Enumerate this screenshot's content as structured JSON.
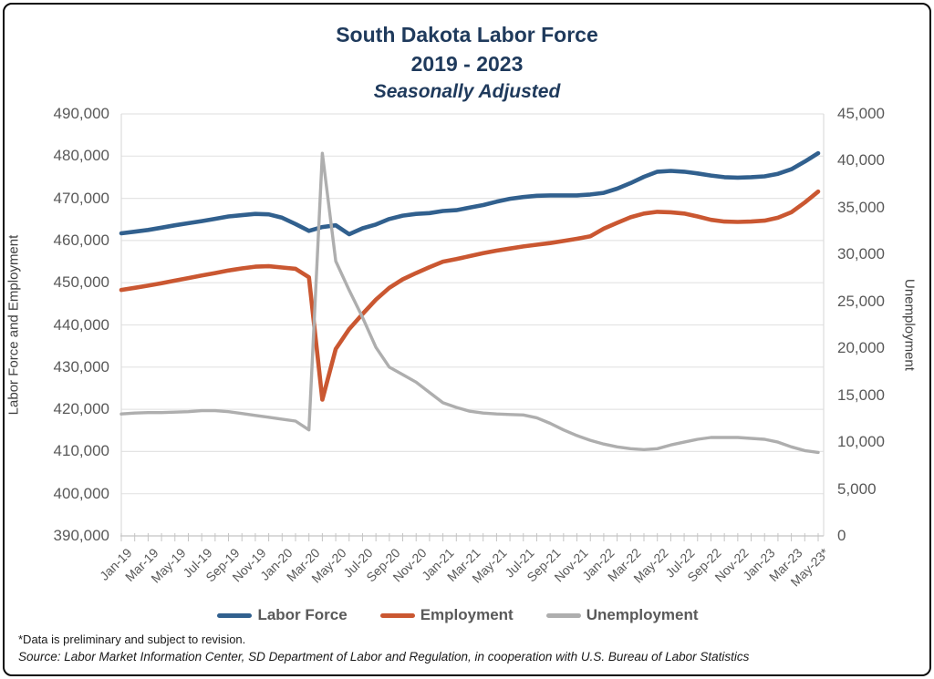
{
  "colors": {
    "title_text": "#1F3A5C",
    "tick_text": "#595959",
    "legend_text": "#595959",
    "gridline": "#E4E4E4",
    "axis_line": "#C4C4C4",
    "plot_border": "#DCDCDC",
    "frame_border": "#0A0A0A",
    "background": "#FFFFFF",
    "labor_force_line": "#31608E",
    "employment_line": "#CA5731",
    "unemployment_line": "#AEAEAE"
  },
  "footnotes": {
    "note": "*Data is preliminary and subject to revision.",
    "source": "Source: Labor Market Information Center, SD Department of Labor and Regulation, in cooperation with U.S. Bureau of Labor Statistics"
  },
  "chart_data": {
    "type": "line",
    "title_lines": [
      "South Dakota Labor Force",
      "2019 - 2023",
      "Seasonally Adjusted"
    ],
    "grid": "horizontal",
    "legend_position": "bottom",
    "x": [
      "Jan-19",
      "Feb-19",
      "Mar-19",
      "Apr-19",
      "May-19",
      "Jun-19",
      "Jul-19",
      "Aug-19",
      "Sep-19",
      "Oct-19",
      "Nov-19",
      "Dec-19",
      "Jan-20",
      "Feb-20",
      "Mar-20",
      "Apr-20",
      "May-20",
      "Jun-20",
      "Jul-20",
      "Aug-20",
      "Sep-20",
      "Oct-20",
      "Nov-20",
      "Dec-20",
      "Jan-21",
      "Feb-21",
      "Mar-21",
      "Apr-21",
      "May-21",
      "Jun-21",
      "Jul-21",
      "Aug-21",
      "Sep-21",
      "Oct-21",
      "Nov-21",
      "Dec-21",
      "Jan-22",
      "Feb-22",
      "Mar-22",
      "Apr-22",
      "May-22",
      "Jun-22",
      "Jul-22",
      "Aug-22",
      "Sep-22",
      "Oct-22",
      "Nov-22",
      "Dec-22",
      "Jan-23",
      "Feb-23",
      "Mar-23",
      "Apr-23",
      "May-23"
    ],
    "x_tick_labels": [
      "Jan-19",
      "Mar-19",
      "May-19",
      "Jul-19",
      "Sep-19",
      "Nov-19",
      "Jan-20",
      "Mar-20",
      "May-20",
      "Jul-20",
      "Sep-20",
      "Nov-20",
      "Jan-21",
      "Mar-21",
      "May-21",
      "Jul-21",
      "Sep-21",
      "Nov-21",
      "Jan-22",
      "Mar-22",
      "May-22",
      "Jul-22",
      "Sep-22",
      "Nov-22",
      "Jan-23",
      "Mar-23",
      "May-23*"
    ],
    "x_label_every": 2,
    "left_axis": {
      "label": "Labor Force and Employment",
      "min": 390000,
      "max": 490000,
      "step": 10000,
      "tick_labels": [
        "490,000",
        "480,000",
        "470,000",
        "460,000",
        "450,000",
        "440,000",
        "430,000",
        "420,000",
        "410,000",
        "400,000",
        "390,000"
      ]
    },
    "right_axis": {
      "label": "Unemployment",
      "min": 0,
      "max": 45000,
      "step": 5000,
      "tick_labels": [
        "45,000",
        "40,000",
        "35,000",
        "30,000",
        "25,000",
        "20,000",
        "15,000",
        "10,000",
        "5,000",
        "0"
      ]
    },
    "series": [
      {
        "name": "Labor Force",
        "axis": "left",
        "color_key": "labor_force_line",
        "values": [
          461700,
          462100,
          462500,
          463050,
          463600,
          464100,
          464600,
          465150,
          465700,
          466000,
          466300,
          466200,
          465400,
          463900,
          462300,
          463200,
          463600,
          461500,
          462900,
          463800,
          465100,
          465900,
          466300,
          466500,
          467000,
          467200,
          467800,
          468400,
          469200,
          469900,
          470300,
          470600,
          470700,
          470700,
          470700,
          470900,
          471300,
          472300,
          473600,
          475100,
          476300,
          476500,
          476300,
          475900,
          475400,
          475000,
          474900,
          475000,
          475200,
          475800,
          476900,
          478700,
          480700
        ]
      },
      {
        "name": "Employment",
        "axis": "left",
        "color_key": "employment_line",
        "values": [
          448300,
          448800,
          449300,
          449900,
          450500,
          451100,
          451700,
          452300,
          452900,
          453400,
          453800,
          453900,
          453600,
          453300,
          451300,
          422300,
          434300,
          439000,
          442600,
          446000,
          448800,
          450800,
          452300,
          453700,
          455000,
          455600,
          456300,
          457000,
          457600,
          458100,
          458600,
          459000,
          459400,
          459900,
          460400,
          461000,
          462800,
          464200,
          465500,
          466400,
          466800,
          466700,
          466400,
          465700,
          464900,
          464500,
          464400,
          464500,
          464700,
          465400,
          466700,
          469000,
          471600
        ]
      },
      {
        "name": "Unemployment",
        "axis": "right",
        "color_key": "unemployment_line",
        "values": [
          13000,
          13100,
          13150,
          13150,
          13200,
          13250,
          13350,
          13350,
          13250,
          13050,
          12850,
          12650,
          12450,
          12250,
          11300,
          40800,
          29300,
          26200,
          23300,
          20100,
          18000,
          17200,
          16400,
          15300,
          14200,
          13700,
          13300,
          13100,
          13000,
          12950,
          12900,
          12600,
          12000,
          11300,
          10700,
          10200,
          9800,
          9500,
          9300,
          9200,
          9300,
          9700,
          10000,
          10300,
          10500,
          10500,
          10500,
          10400,
          10300,
          10000,
          9500,
          9100,
          8900
        ]
      }
    ]
  }
}
